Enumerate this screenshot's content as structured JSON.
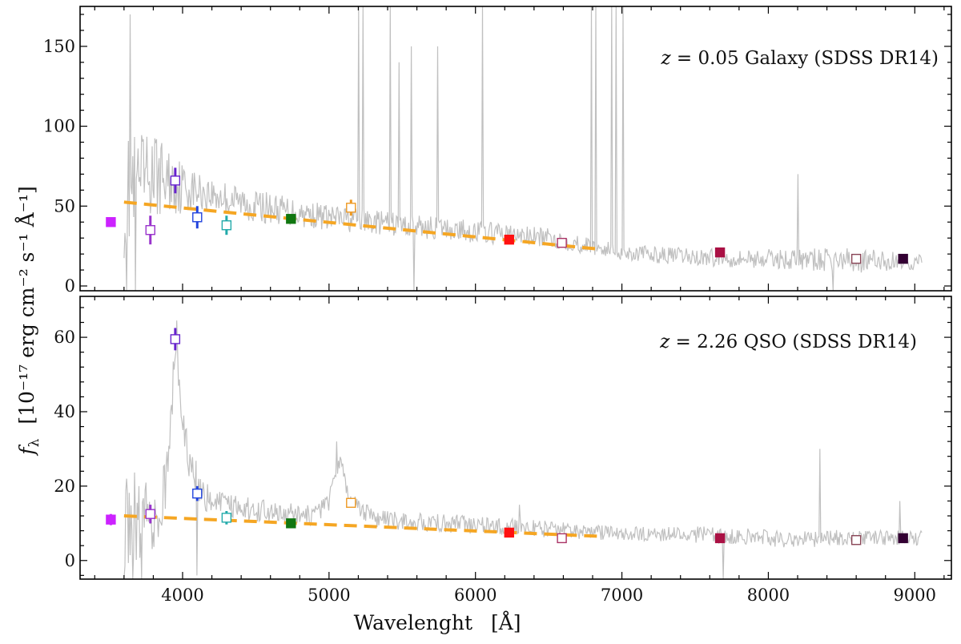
{
  "chart_data": [
    {
      "type": "line",
      "annotation": {
        "z": "z",
        "eq": "= 0.05 Galaxy (SDSS DR14)"
      },
      "xlim": [
        3300,
        9250
      ],
      "ylim": [
        -3,
        175
      ],
      "yticks": [
        0,
        50,
        100,
        150
      ],
      "spectrum_color": "#c0c0c0",
      "spectrum_envelope": [
        [
          3600,
          55
        ],
        [
          3800,
          70
        ],
        [
          4000,
          62
        ],
        [
          4500,
          50
        ],
        [
          5000,
          43
        ],
        [
          5500,
          38
        ],
        [
          6000,
          34
        ],
        [
          6500,
          30
        ],
        [
          7000,
          21
        ],
        [
          7500,
          18
        ],
        [
          8000,
          17
        ],
        [
          8500,
          16
        ],
        [
          9050,
          15
        ]
      ],
      "spectrum_noise": [
        [
          3600,
          38
        ],
        [
          3900,
          22
        ],
        [
          4100,
          12
        ],
        [
          5000,
          8
        ],
        [
          6000,
          7
        ],
        [
          7000,
          5
        ],
        [
          8000,
          6
        ],
        [
          8600,
          8
        ],
        [
          9050,
          5
        ]
      ],
      "emission_lines": [
        [
          3640,
          170
        ],
        [
          3680,
          175
        ],
        [
          5200,
          175
        ],
        [
          5230,
          175
        ],
        [
          5420,
          175
        ],
        [
          5480,
          140
        ],
        [
          5560,
          150
        ],
        [
          5740,
          150
        ],
        [
          6050,
          175
        ],
        [
          6790,
          175
        ],
        [
          6820,
          175
        ],
        [
          6930,
          175
        ],
        [
          6960,
          175
        ],
        [
          7010,
          175
        ],
        [
          8200,
          70
        ]
      ],
      "absorption_dips": [
        [
          3620,
          -3
        ],
        [
          3680,
          -3
        ],
        [
          5580,
          -3
        ],
        [
          8440,
          -3
        ]
      ],
      "continuum_fit": {
        "color": "#f5a623",
        "x": [
          3600,
          6850
        ],
        "y": [
          52.5,
          23
        ]
      },
      "photometry": [
        {
          "x": 3510,
          "y": 40,
          "err": 1.5,
          "filled": true,
          "color": "#cc22ff"
        },
        {
          "x": 3780,
          "y": 35,
          "err": 9,
          "filled": false,
          "color": "#9933cc"
        },
        {
          "x": 3950,
          "y": 66,
          "err": 8,
          "filled": false,
          "color": "#6622cc"
        },
        {
          "x": 4100,
          "y": 43,
          "err": 7,
          "filled": false,
          "color": "#2244dd"
        },
        {
          "x": 4300,
          "y": 38,
          "err": 6,
          "filled": false,
          "color": "#22aaaa"
        },
        {
          "x": 4740,
          "y": 42,
          "err": 1.5,
          "filled": true,
          "color": "#117711"
        },
        {
          "x": 5150,
          "y": 49,
          "err": 5,
          "filled": false,
          "color": "#ee9922"
        },
        {
          "x": 6230,
          "y": 29,
          "err": 1.5,
          "filled": true,
          "color": "#ff1111"
        },
        {
          "x": 6590,
          "y": 27,
          "err": 1.5,
          "filled": false,
          "color": "#aa3366"
        },
        {
          "x": 7670,
          "y": 21,
          "err": 1.5,
          "filled": true,
          "color": "#aa1144"
        },
        {
          "x": 8600,
          "y": 17,
          "err": 1.5,
          "filled": false,
          "color": "#884455"
        },
        {
          "x": 8920,
          "y": 17,
          "err": 1.5,
          "filled": true,
          "color": "#330033"
        }
      ]
    },
    {
      "type": "line",
      "annotation": {
        "z": "z",
        "eq": "= 2.26 QSO (SDSS DR14)"
      },
      "xlim": [
        3300,
        9250
      ],
      "ylim": [
        -5,
        71
      ],
      "yticks": [
        0,
        20,
        40,
        60
      ],
      "xticks": [
        4000,
        5000,
        6000,
        7000,
        8000,
        9000
      ],
      "xlabel": "Wavelenght",
      "xunit": "[Å]",
      "spectrum_color": "#c0c0c0",
      "spectrum_envelope": [
        [
          3600,
          12
        ],
        [
          3800,
          13
        ],
        [
          3880,
          18
        ],
        [
          3930,
          45
        ],
        [
          3960,
          60
        ],
        [
          3990,
          38
        ],
        [
          4050,
          26
        ],
        [
          4150,
          17
        ],
        [
          4400,
          14
        ],
        [
          4900,
          12
        ],
        [
          5000,
          16
        ],
        [
          5040,
          24
        ],
        [
          5080,
          28
        ],
        [
          5120,
          18
        ],
        [
          5300,
          11
        ],
        [
          6300,
          9
        ],
        [
          7000,
          7
        ],
        [
          7500,
          7
        ],
        [
          8000,
          6
        ],
        [
          8500,
          6
        ],
        [
          9050,
          6
        ]
      ],
      "spectrum_noise": [
        [
          3600,
          14
        ],
        [
          3800,
          10
        ],
        [
          3950,
          6
        ],
        [
          4200,
          3.5
        ],
        [
          5000,
          2.5
        ],
        [
          6000,
          2.5
        ],
        [
          7000,
          2
        ],
        [
          8000,
          2.5
        ],
        [
          9050,
          2
        ]
      ],
      "emission_lines": [
        [
          3620,
          22
        ],
        [
          3700,
          20
        ],
        [
          5050,
          32
        ],
        [
          6300,
          15
        ],
        [
          8350,
          30
        ],
        [
          8900,
          16
        ]
      ],
      "absorption_dips": [
        [
          3600,
          -5
        ],
        [
          3660,
          -5
        ],
        [
          3720,
          -5
        ],
        [
          4100,
          -4
        ],
        [
          7690,
          -5
        ]
      ],
      "continuum_fit": {
        "color": "#f5a623",
        "x": [
          3600,
          6850
        ],
        "y": [
          12,
          6.5
        ]
      },
      "photometry": [
        {
          "x": 3510,
          "y": 11,
          "err": 1.5,
          "filled": true,
          "color": "#cc22ff"
        },
        {
          "x": 3780,
          "y": 12.5,
          "err": 2.5,
          "filled": false,
          "color": "#9933cc"
        },
        {
          "x": 3950,
          "y": 59.5,
          "err": 3,
          "filled": false,
          "color": "#6622cc"
        },
        {
          "x": 4100,
          "y": 18,
          "err": 2,
          "filled": false,
          "color": "#2244dd"
        },
        {
          "x": 4300,
          "y": 11.5,
          "err": 1.8,
          "filled": false,
          "color": "#22aaaa"
        },
        {
          "x": 4740,
          "y": 10,
          "err": 0.5,
          "filled": true,
          "color": "#117711"
        },
        {
          "x": 5150,
          "y": 15.5,
          "err": 0.6,
          "filled": false,
          "color": "#ee9922"
        },
        {
          "x": 6230,
          "y": 7.5,
          "err": 0.5,
          "filled": true,
          "color": "#ff1111"
        },
        {
          "x": 6590,
          "y": 6,
          "err": 0.5,
          "filled": false,
          "color": "#aa3366"
        },
        {
          "x": 7670,
          "y": 6,
          "err": 0.5,
          "filled": true,
          "color": "#aa1144"
        },
        {
          "x": 8600,
          "y": 5.5,
          "err": 0.5,
          "filled": false,
          "color": "#884455"
        },
        {
          "x": 8920,
          "y": 6,
          "err": 0.5,
          "filled": true,
          "color": "#330033"
        }
      ]
    }
  ],
  "ylabel": {
    "f": "f",
    "sub": "λ",
    "rest": "[10⁻¹⁷ erg cm⁻² s⁻¹ Å⁻¹]"
  }
}
